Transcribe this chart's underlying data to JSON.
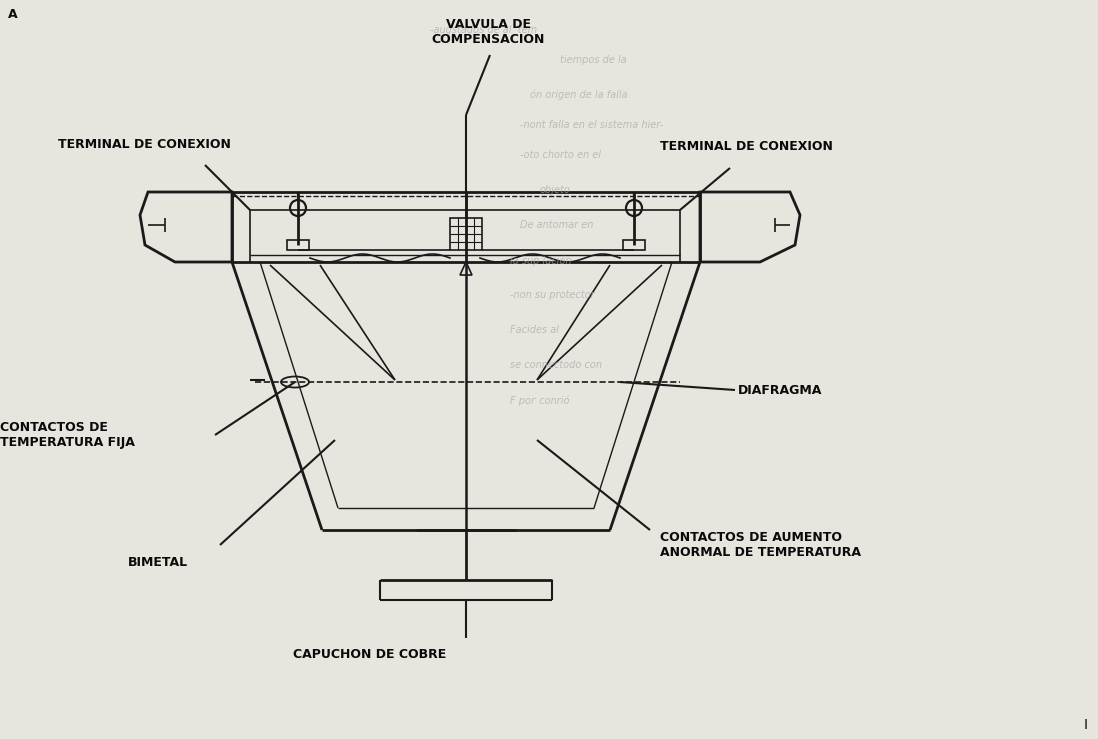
{
  "bg_color": "#e8e4de",
  "diagram_color": "#1a1a1a",
  "text_color": "#0a0a0a",
  "faded_text_color": "#aaaaaa",
  "title_label": "VALVULA DE\nCOMPENSACION",
  "label_terminal_left": "TERMINAL DE CONEXION",
  "label_terminal_right": "TERMINAL DE CONEXION",
  "label_contactos_temp": "CONTACTOS DE\nTEMPERATURA FIJA",
  "label_diafragma": "DIAFRAGMA",
  "label_bimetal": "BIMETAL",
  "label_contactos_aumento": "CONTACTOS DE AUMENTO\nANORMAL DE TEMPERATURA",
  "label_capuchon": "CAPUCHON DE COBRE",
  "figsize": [
    10.98,
    7.39
  ],
  "dpi": 100
}
